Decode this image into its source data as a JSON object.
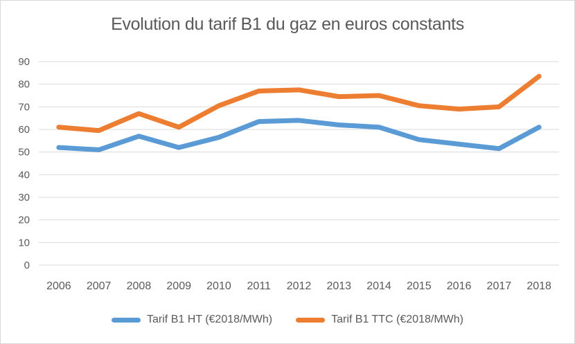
{
  "chart_data": {
    "type": "line",
    "title": "Evolution du tarif B1 du gaz en euros constants",
    "categories": [
      "2006",
      "2007",
      "2008",
      "2009",
      "2010",
      "2011",
      "2012",
      "2013",
      "2014",
      "2015",
      "2016",
      "2017",
      "2018"
    ],
    "series": [
      {
        "name": "Tarif B1 HT (€2018/MWh)",
        "color": "#5B9BD5",
        "values": [
          52,
          51,
          57,
          52,
          56.5,
          63.5,
          64,
          62,
          61,
          55.5,
          53.5,
          51.5,
          61
        ]
      },
      {
        "name": "Tarif B1 TTC (€2018/MWh)",
        "color": "#ED7D31",
        "values": [
          61,
          59.5,
          67,
          61,
          70.5,
          77,
          77.5,
          74.5,
          75,
          70.5,
          69,
          70,
          83.5
        ]
      }
    ],
    "xlabel": "",
    "ylabel": "",
    "ylim": [
      0,
      90
    ],
    "yticks": [
      0,
      10,
      20,
      30,
      40,
      50,
      60,
      70,
      80,
      90
    ],
    "grid": true,
    "legend_position": "bottom"
  },
  "colors": {
    "title_text": "#595959",
    "axis_text": "#595959",
    "gridline": "#D9D9D9",
    "frame_border": "#D7D7D7",
    "background": "#FFFFFF"
  }
}
